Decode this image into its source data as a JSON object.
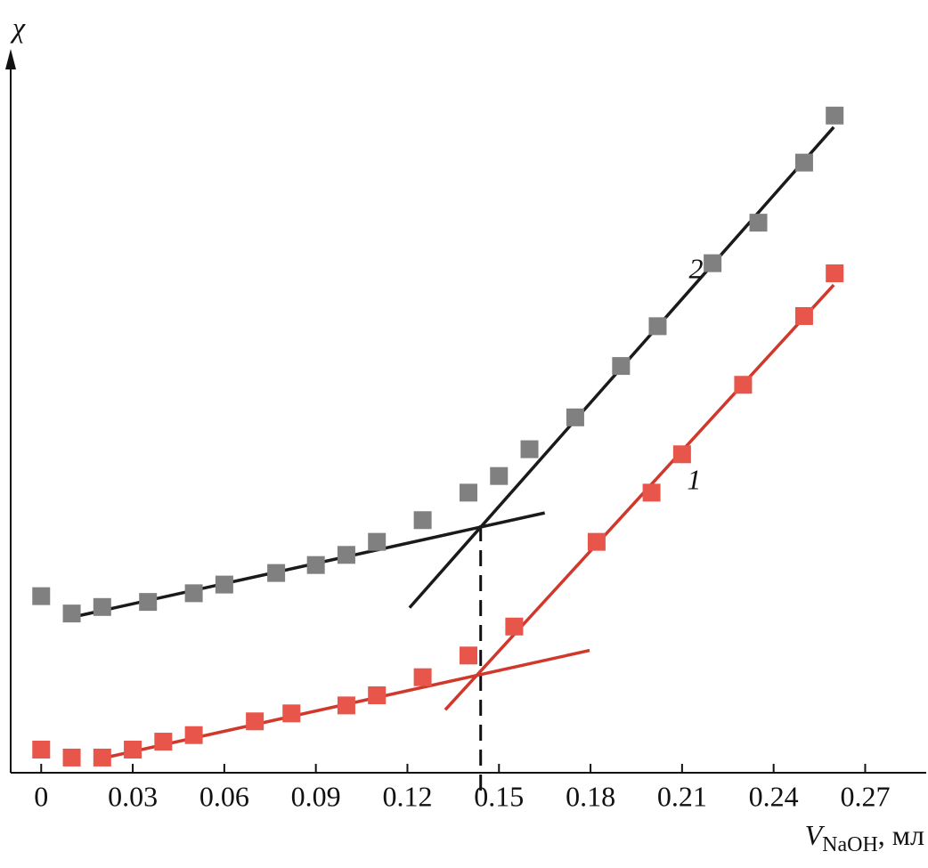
{
  "chart_data": {
    "type": "scatter",
    "y_label": "χ",
    "x_label": {
      "symbol": "V",
      "subscript": "NaOH",
      "unit": ", мл"
    },
    "xlim": [
      -0.01,
      0.29
    ],
    "xticks": [
      0,
      0.03,
      0.06,
      0.09,
      0.12,
      0.15,
      0.18,
      0.21,
      0.24,
      0.27
    ],
    "ylim": [
      0,
      100
    ],
    "series": [
      {
        "name": "1",
        "color": "#e8554a",
        "line_color": "#d0382b",
        "x": [
          0,
          0.01,
          0.02,
          0.03,
          0.04,
          0.05,
          0.07,
          0.082,
          0.1,
          0.11,
          0.125,
          0.14,
          0.155,
          0.182,
          0.2,
          0.21,
          0.23,
          0.25,
          0.26
        ],
        "values": [
          3.2,
          2.1,
          2.1,
          3.2,
          4.3,
          5.2,
          7.1,
          8.2,
          9.3,
          10.7,
          13.2,
          16.2,
          20.2,
          31.9,
          38.7,
          44.0,
          53.6,
          63.1,
          69.0
        ]
      },
      {
        "name": "2",
        "color": "#808080",
        "line_color": "#1a1a1a",
        "x": [
          0,
          0.01,
          0.02,
          0.035,
          0.05,
          0.06,
          0.077,
          0.09,
          0.1,
          0.11,
          0.125,
          0.14,
          0.15,
          0.16,
          0.175,
          0.19,
          0.202,
          0.22,
          0.235,
          0.25,
          0.26
        ],
        "values": [
          24.4,
          22.0,
          22.9,
          23.6,
          24.8,
          26.0,
          27.6,
          28.7,
          30.1,
          31.9,
          34.9,
          38.7,
          41.0,
          44.7,
          49.1,
          56.2,
          61.7,
          70.4,
          76.0,
          84.3,
          90.8
        ]
      }
    ],
    "fit_lines": [
      {
        "series": 0,
        "x": [
          0.02,
          0.1797
        ],
        "y": [
          2.0,
          16.9
        ]
      },
      {
        "series": 0,
        "x": [
          0.1324,
          0.2597
        ],
        "y": [
          8.7,
          67.4
        ]
      },
      {
        "series": 1,
        "x": [
          0.0113,
          0.165
        ],
        "y": [
          21.6,
          35.9
        ]
      },
      {
        "series": 1,
        "x": [
          0.1207,
          0.2597
        ],
        "y": [
          22.8,
          89.2
        ]
      }
    ],
    "reference_line": {
      "x": 0.144,
      "y": 34.2
    }
  }
}
